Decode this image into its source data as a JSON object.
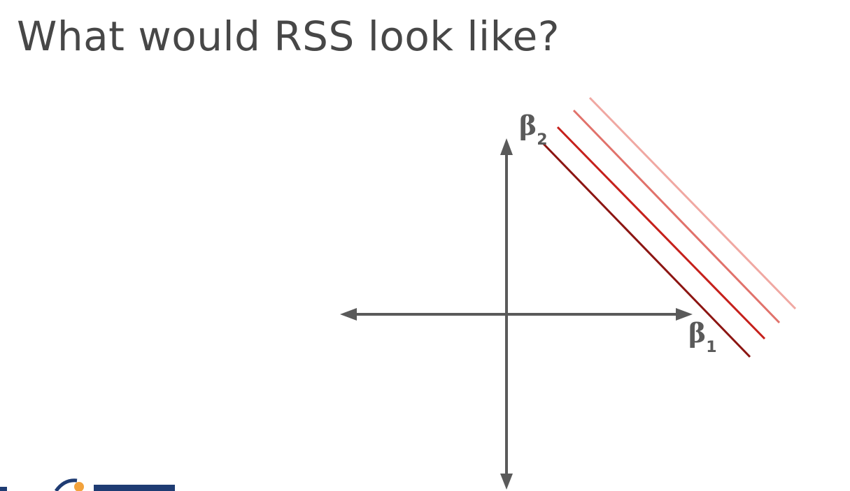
{
  "title": "What would RSS look like?",
  "diagram": {
    "x_axis": {
      "symbol": "β",
      "subscript": "1"
    },
    "y_axis": {
      "symbol": "β",
      "subscript": "2"
    },
    "axis_color": "#5a5a5a",
    "contours": [
      {
        "color": "#f0a8a2"
      },
      {
        "color": "#e1726b"
      },
      {
        "color": "#c6201b"
      },
      {
        "color": "#8c1512"
      }
    ]
  },
  "logo": {
    "colors": [
      "#1f3c73",
      "#f2a23c"
    ]
  }
}
